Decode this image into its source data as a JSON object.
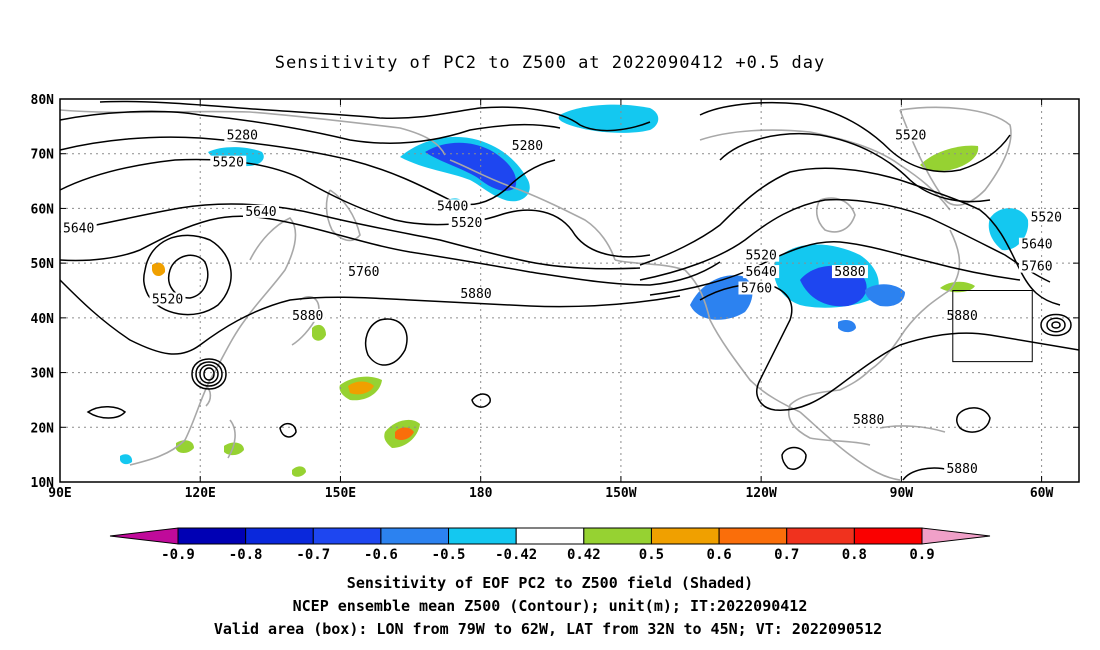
{
  "title": "Sensitivity of PC2 to Z500 at 2022090412 +0.5 day",
  "map": {
    "lon_labels": [
      "90E",
      "120E",
      "150E",
      "180",
      "150W",
      "120W",
      "90W",
      "60W"
    ],
    "lat_labels": [
      "80N",
      "70N",
      "60N",
      "50N",
      "40N",
      "30N",
      "20N",
      "10N"
    ],
    "lon_range": [
      90,
      308
    ],
    "lat_range": [
      10,
      80
    ],
    "grid_style": "dotted",
    "contour_labels": [
      {
        "text": "5280",
        "lon": 129,
        "lat": 73
      },
      {
        "text": "5280",
        "lon": 190,
        "lat": 71
      },
      {
        "text": "5520",
        "lon": 126,
        "lat": 68
      },
      {
        "text": "5520",
        "lon": 272,
        "lat": 73
      },
      {
        "text": "5400",
        "lon": 174,
        "lat": 60
      },
      {
        "text": "5520",
        "lon": 177,
        "lat": 57
      },
      {
        "text": "5640",
        "lon": 133,
        "lat": 59
      },
      {
        "text": "5640",
        "lon": 94,
        "lat": 56
      },
      {
        "text": "5520",
        "lon": 113,
        "lat": 43
      },
      {
        "text": "5760",
        "lon": 155,
        "lat": 48
      },
      {
        "text": "5880",
        "lon": 179,
        "lat": 44
      },
      {
        "text": "5880",
        "lon": 143,
        "lat": 40
      },
      {
        "text": "5520",
        "lon": 240,
        "lat": 51
      },
      {
        "text": "5640",
        "lon": 240,
        "lat": 48
      },
      {
        "text": "5760",
        "lon": 239,
        "lat": 45
      },
      {
        "text": "5880",
        "lon": 259,
        "lat": 48
      },
      {
        "text": "5520",
        "lon": 301,
        "lat": 58
      },
      {
        "text": "5640",
        "lon": 299,
        "lat": 53
      },
      {
        "text": "5760",
        "lon": 299,
        "lat": 49
      },
      {
        "text": "5880",
        "lon": 283,
        "lat": 40
      },
      {
        "text": "5880",
        "lon": 263,
        "lat": 21
      },
      {
        "text": "5880",
        "lon": 283,
        "lat": 12
      }
    ],
    "valid_box": {
      "lon": [
        281,
        298
      ],
      "lat": [
        32,
        45
      ]
    },
    "colors": {
      "land": "#a8a8a8",
      "contour": "#000000",
      "grid": "#8c8c8c"
    }
  },
  "colorbar": {
    "labels": [
      "-0.9",
      "-0.8",
      "-0.7",
      "-0.6",
      "-0.5",
      "-0.42",
      "0.42",
      "0.5",
      "0.6",
      "0.7",
      "0.8",
      "0.9"
    ],
    "colors": [
      "#c00a9a",
      "#0000b4",
      "#0a28dc",
      "#1e46f0",
      "#2c82f0",
      "#14c8f0",
      "#ffffff",
      "#96d232",
      "#f0a000",
      "#fa6e0a",
      "#f0321e",
      "#fa0000",
      "#f0a0c8"
    ]
  },
  "caption": {
    "line1": "Sensitivity of EOF PC2 to Z500 field (Shaded)",
    "line2": "NCEP ensemble mean Z500 (Contour); unit(m); IT:2022090412",
    "line3": "Valid area (box): LON from 79W to 62W, LAT from 32N to 45N; VT: 2022090512"
  }
}
